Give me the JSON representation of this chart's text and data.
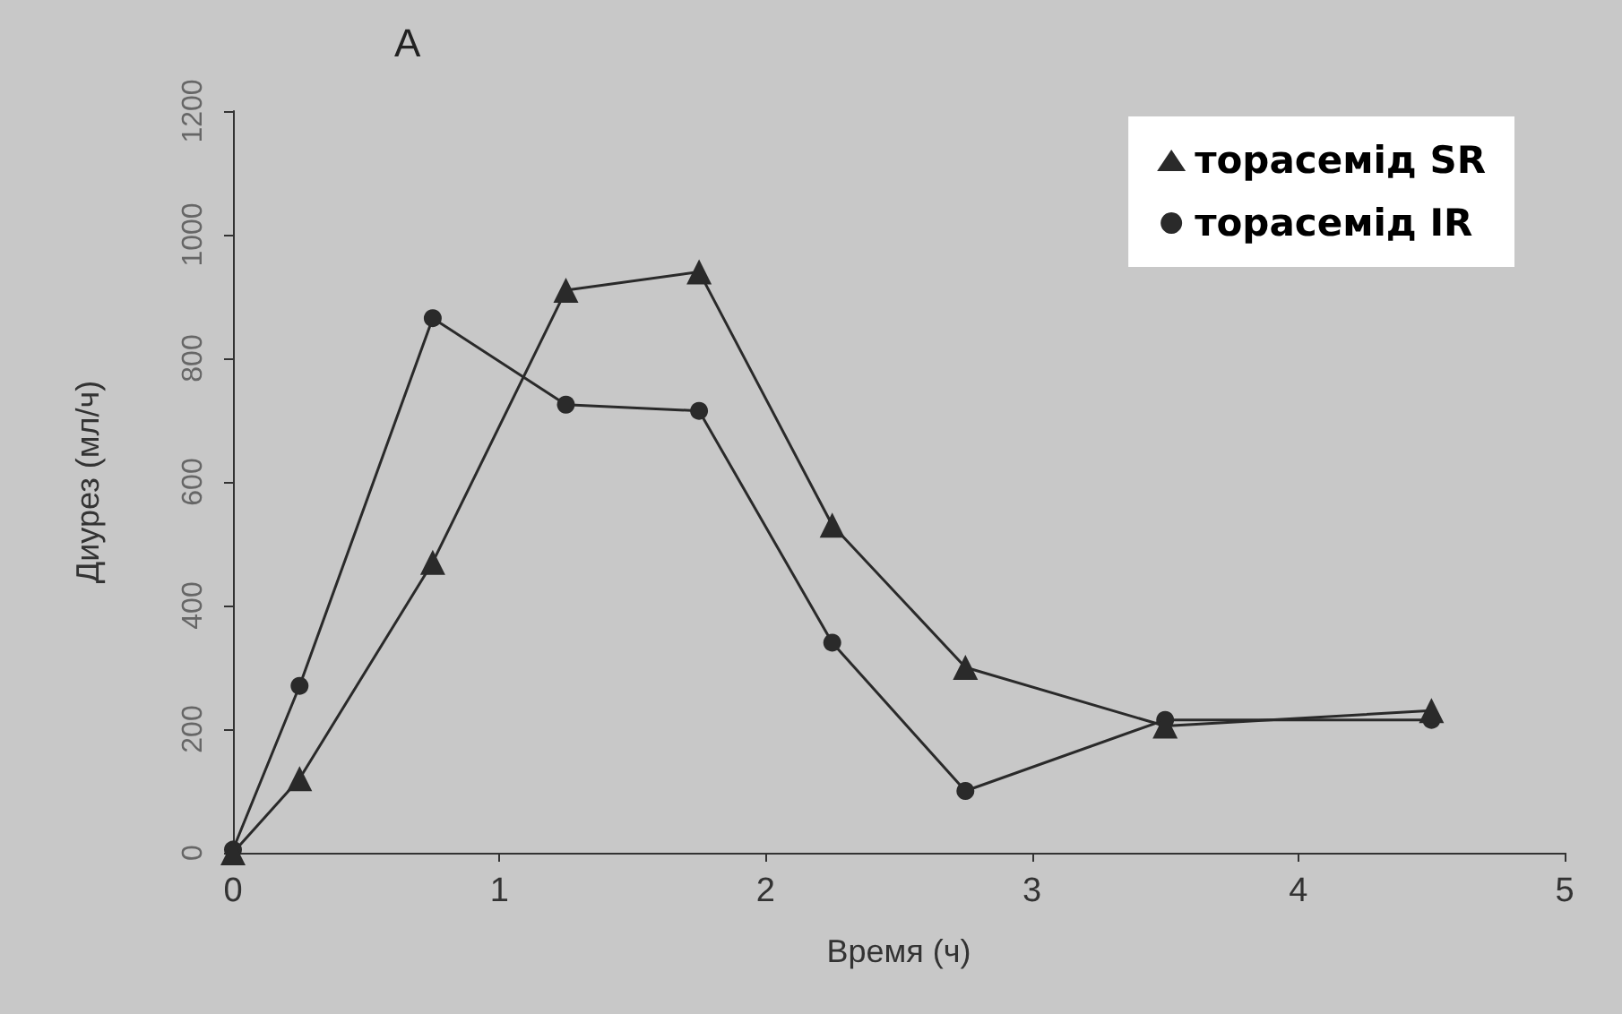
{
  "chart_data": {
    "type": "line",
    "title": "A",
    "xlabel": "Время (ч)",
    "ylabel": "Диурез (мл/ч)",
    "xlim": [
      0,
      5
    ],
    "xticks": [
      0,
      1,
      2,
      3,
      4,
      5
    ],
    "ylim": [
      0,
      1200
    ],
    "yticks": [
      0,
      200,
      400,
      600,
      800,
      1000,
      1200
    ],
    "grid": false,
    "legend": "top right",
    "line_style": "solid",
    "series": [
      {
        "name": "торасемід SR",
        "color": "#2a2a2a",
        "marker": "triangle",
        "x": [
          0,
          0.25,
          0.75,
          1.25,
          1.75,
          2.25,
          2.75,
          3.5,
          4.5
        ],
        "values": [
          0,
          120,
          470,
          910,
          940,
          530,
          300,
          205,
          230
        ]
      },
      {
        "name": "торасемід IR",
        "color": "#2a2a2a",
        "marker": "circle",
        "x": [
          0,
          0.25,
          0.75,
          1.25,
          1.75,
          2.25,
          2.75,
          3.5,
          4.5
        ],
        "values": [
          5,
          270,
          865,
          725,
          715,
          340,
          100,
          215,
          215
        ]
      }
    ]
  }
}
